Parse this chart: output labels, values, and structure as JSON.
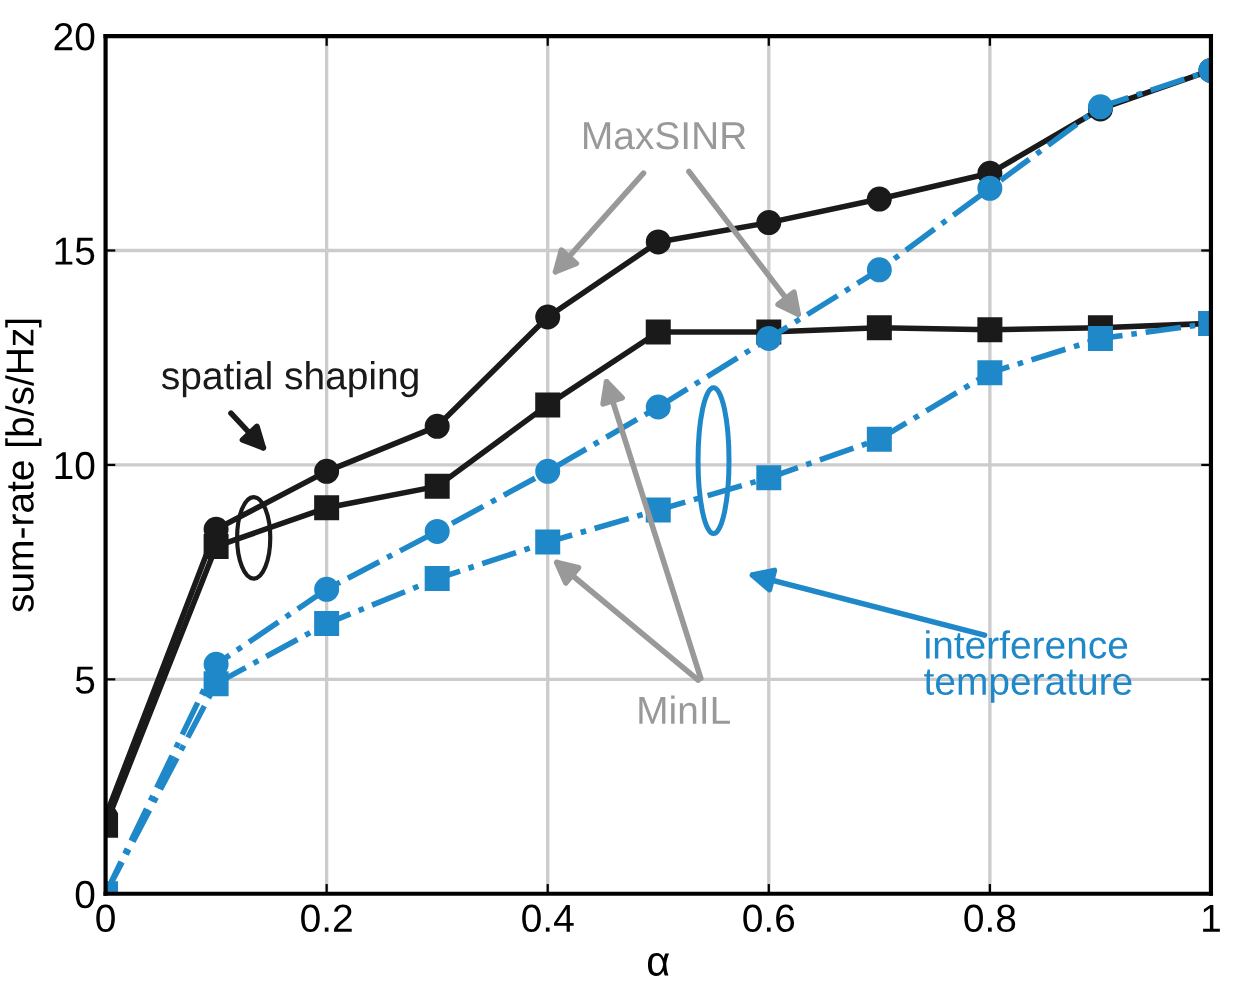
{
  "chart_data": {
    "type": "line",
    "xlabel": "α",
    "ylabel": "sum-rate [b/s/Hz]",
    "x": [
      0,
      0.1,
      0.2,
      0.3,
      0.4,
      0.5,
      0.6,
      0.7,
      0.8,
      0.9,
      1
    ],
    "series": [
      {
        "color": "#1a1a1a",
        "marker": "circle",
        "line_style": "solid",
        "values": [
          1.8,
          8.5,
          9.85,
          10.9,
          13.45,
          15.2,
          15.65,
          16.2,
          16.8,
          18.3,
          19.2
        ]
      },
      {
        "color": "#1a1a1a",
        "marker": "square",
        "line_style": "solid",
        "values": [
          1.6,
          8.1,
          9.0,
          9.5,
          11.4,
          13.1,
          13.1,
          13.2,
          13.15,
          13.2,
          13.3
        ]
      },
      {
        "color": "#1f88c8",
        "marker": "circle",
        "line_style": "dashdot",
        "values": [
          0,
          5.35,
          7.1,
          8.45,
          9.85,
          11.35,
          12.95,
          14.55,
          16.45,
          18.35,
          19.2
        ]
      },
      {
        "color": "#1f88c8",
        "marker": "square",
        "line_style": "dashdot",
        "values": [
          0,
          4.9,
          6.3,
          7.35,
          8.2,
          8.95,
          9.7,
          10.6,
          12.15,
          12.95,
          13.3
        ]
      }
    ],
    "annotations": [
      {
        "text": "MaxSINR",
        "x": 0.63,
        "y": 13.4
      },
      "MinIL",
      "spatial shaping",
      "interference\ntemperature"
    ],
    "xlim": [
      0,
      1
    ],
    "ylim": [
      0,
      20
    ],
    "xticks": [
      0,
      0.2,
      0.4,
      0.6,
      0.8,
      1
    ],
    "yticks": [
      0,
      5,
      10,
      15,
      20
    ],
    "grid": true,
    "legend": false
  }
}
